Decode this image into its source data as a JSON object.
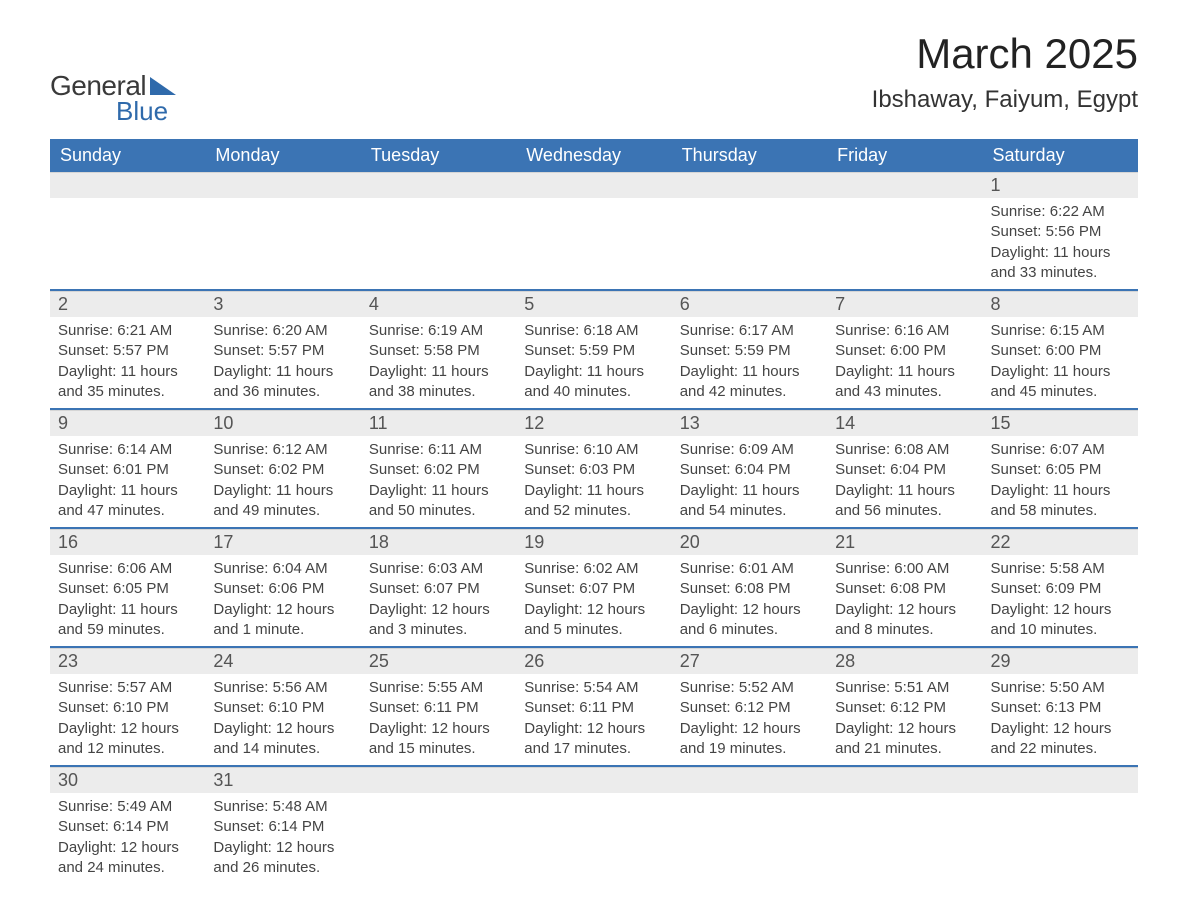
{
  "logo": {
    "text1": "General",
    "text2": "Blue",
    "brand_color": "#2f6aab"
  },
  "title": "March 2025",
  "location": "Ibshaway, Faiyum, Egypt",
  "colors": {
    "header_bg": "#3b74b4",
    "header_text": "#ffffff",
    "daynum_bg": "#ececec",
    "row_border": "#3b74b4",
    "body_text": "#444444"
  },
  "daysOfWeek": [
    "Sunday",
    "Monday",
    "Tuesday",
    "Wednesday",
    "Thursday",
    "Friday",
    "Saturday"
  ],
  "weeks": [
    [
      null,
      null,
      null,
      null,
      null,
      null,
      {
        "n": "1",
        "sunrise": "Sunrise: 6:22 AM",
        "sunset": "Sunset: 5:56 PM",
        "daylight1": "Daylight: 11 hours",
        "daylight2": "and 33 minutes."
      }
    ],
    [
      {
        "n": "2",
        "sunrise": "Sunrise: 6:21 AM",
        "sunset": "Sunset: 5:57 PM",
        "daylight1": "Daylight: 11 hours",
        "daylight2": "and 35 minutes."
      },
      {
        "n": "3",
        "sunrise": "Sunrise: 6:20 AM",
        "sunset": "Sunset: 5:57 PM",
        "daylight1": "Daylight: 11 hours",
        "daylight2": "and 36 minutes."
      },
      {
        "n": "4",
        "sunrise": "Sunrise: 6:19 AM",
        "sunset": "Sunset: 5:58 PM",
        "daylight1": "Daylight: 11 hours",
        "daylight2": "and 38 minutes."
      },
      {
        "n": "5",
        "sunrise": "Sunrise: 6:18 AM",
        "sunset": "Sunset: 5:59 PM",
        "daylight1": "Daylight: 11 hours",
        "daylight2": "and 40 minutes."
      },
      {
        "n": "6",
        "sunrise": "Sunrise: 6:17 AM",
        "sunset": "Sunset: 5:59 PM",
        "daylight1": "Daylight: 11 hours",
        "daylight2": "and 42 minutes."
      },
      {
        "n": "7",
        "sunrise": "Sunrise: 6:16 AM",
        "sunset": "Sunset: 6:00 PM",
        "daylight1": "Daylight: 11 hours",
        "daylight2": "and 43 minutes."
      },
      {
        "n": "8",
        "sunrise": "Sunrise: 6:15 AM",
        "sunset": "Sunset: 6:00 PM",
        "daylight1": "Daylight: 11 hours",
        "daylight2": "and 45 minutes."
      }
    ],
    [
      {
        "n": "9",
        "sunrise": "Sunrise: 6:14 AM",
        "sunset": "Sunset: 6:01 PM",
        "daylight1": "Daylight: 11 hours",
        "daylight2": "and 47 minutes."
      },
      {
        "n": "10",
        "sunrise": "Sunrise: 6:12 AM",
        "sunset": "Sunset: 6:02 PM",
        "daylight1": "Daylight: 11 hours",
        "daylight2": "and 49 minutes."
      },
      {
        "n": "11",
        "sunrise": "Sunrise: 6:11 AM",
        "sunset": "Sunset: 6:02 PM",
        "daylight1": "Daylight: 11 hours",
        "daylight2": "and 50 minutes."
      },
      {
        "n": "12",
        "sunrise": "Sunrise: 6:10 AM",
        "sunset": "Sunset: 6:03 PM",
        "daylight1": "Daylight: 11 hours",
        "daylight2": "and 52 minutes."
      },
      {
        "n": "13",
        "sunrise": "Sunrise: 6:09 AM",
        "sunset": "Sunset: 6:04 PM",
        "daylight1": "Daylight: 11 hours",
        "daylight2": "and 54 minutes."
      },
      {
        "n": "14",
        "sunrise": "Sunrise: 6:08 AM",
        "sunset": "Sunset: 6:04 PM",
        "daylight1": "Daylight: 11 hours",
        "daylight2": "and 56 minutes."
      },
      {
        "n": "15",
        "sunrise": "Sunrise: 6:07 AM",
        "sunset": "Sunset: 6:05 PM",
        "daylight1": "Daylight: 11 hours",
        "daylight2": "and 58 minutes."
      }
    ],
    [
      {
        "n": "16",
        "sunrise": "Sunrise: 6:06 AM",
        "sunset": "Sunset: 6:05 PM",
        "daylight1": "Daylight: 11 hours",
        "daylight2": "and 59 minutes."
      },
      {
        "n": "17",
        "sunrise": "Sunrise: 6:04 AM",
        "sunset": "Sunset: 6:06 PM",
        "daylight1": "Daylight: 12 hours",
        "daylight2": "and 1 minute."
      },
      {
        "n": "18",
        "sunrise": "Sunrise: 6:03 AM",
        "sunset": "Sunset: 6:07 PM",
        "daylight1": "Daylight: 12 hours",
        "daylight2": "and 3 minutes."
      },
      {
        "n": "19",
        "sunrise": "Sunrise: 6:02 AM",
        "sunset": "Sunset: 6:07 PM",
        "daylight1": "Daylight: 12 hours",
        "daylight2": "and 5 minutes."
      },
      {
        "n": "20",
        "sunrise": "Sunrise: 6:01 AM",
        "sunset": "Sunset: 6:08 PM",
        "daylight1": "Daylight: 12 hours",
        "daylight2": "and 6 minutes."
      },
      {
        "n": "21",
        "sunrise": "Sunrise: 6:00 AM",
        "sunset": "Sunset: 6:08 PM",
        "daylight1": "Daylight: 12 hours",
        "daylight2": "and 8 minutes."
      },
      {
        "n": "22",
        "sunrise": "Sunrise: 5:58 AM",
        "sunset": "Sunset: 6:09 PM",
        "daylight1": "Daylight: 12 hours",
        "daylight2": "and 10 minutes."
      }
    ],
    [
      {
        "n": "23",
        "sunrise": "Sunrise: 5:57 AM",
        "sunset": "Sunset: 6:10 PM",
        "daylight1": "Daylight: 12 hours",
        "daylight2": "and 12 minutes."
      },
      {
        "n": "24",
        "sunrise": "Sunrise: 5:56 AM",
        "sunset": "Sunset: 6:10 PM",
        "daylight1": "Daylight: 12 hours",
        "daylight2": "and 14 minutes."
      },
      {
        "n": "25",
        "sunrise": "Sunrise: 5:55 AM",
        "sunset": "Sunset: 6:11 PM",
        "daylight1": "Daylight: 12 hours",
        "daylight2": "and 15 minutes."
      },
      {
        "n": "26",
        "sunrise": "Sunrise: 5:54 AM",
        "sunset": "Sunset: 6:11 PM",
        "daylight1": "Daylight: 12 hours",
        "daylight2": "and 17 minutes."
      },
      {
        "n": "27",
        "sunrise": "Sunrise: 5:52 AM",
        "sunset": "Sunset: 6:12 PM",
        "daylight1": "Daylight: 12 hours",
        "daylight2": "and 19 minutes."
      },
      {
        "n": "28",
        "sunrise": "Sunrise: 5:51 AM",
        "sunset": "Sunset: 6:12 PM",
        "daylight1": "Daylight: 12 hours",
        "daylight2": "and 21 minutes."
      },
      {
        "n": "29",
        "sunrise": "Sunrise: 5:50 AM",
        "sunset": "Sunset: 6:13 PM",
        "daylight1": "Daylight: 12 hours",
        "daylight2": "and 22 minutes."
      }
    ],
    [
      {
        "n": "30",
        "sunrise": "Sunrise: 5:49 AM",
        "sunset": "Sunset: 6:14 PM",
        "daylight1": "Daylight: 12 hours",
        "daylight2": "and 24 minutes."
      },
      {
        "n": "31",
        "sunrise": "Sunrise: 5:48 AM",
        "sunset": "Sunset: 6:14 PM",
        "daylight1": "Daylight: 12 hours",
        "daylight2": "and 26 minutes."
      },
      null,
      null,
      null,
      null,
      null
    ]
  ]
}
